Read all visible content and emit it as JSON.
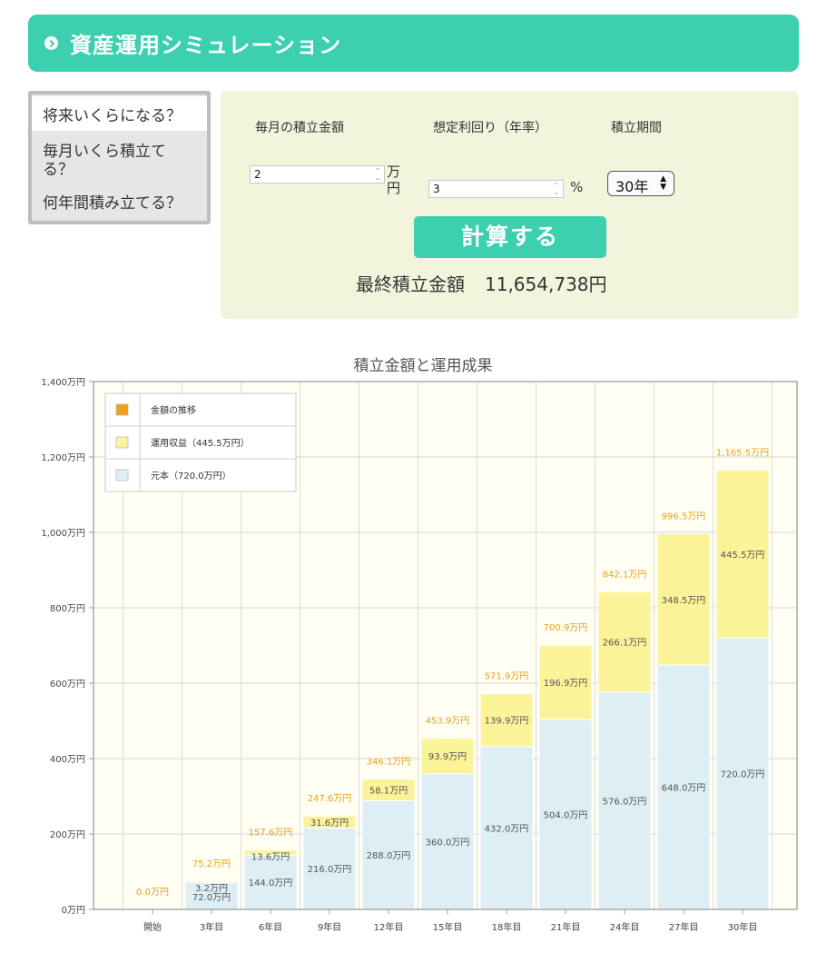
{
  "header": {
    "title": "資産運用シミュレーション"
  },
  "tabs": [
    {
      "label": "将来いくらになる？",
      "active": true
    },
    {
      "label": "毎月いくら積立てる？",
      "active": false
    },
    {
      "label": "何年間積み立てる？",
      "active": false
    }
  ],
  "form": {
    "monthly_label": "毎月の積立金額",
    "rate_label": "想定利回り（年率）",
    "period_label": "積立期間",
    "monthly_value": "2",
    "monthly_unit": "万円",
    "rate_value": "3",
    "rate_unit": "%",
    "period_value": "30年",
    "calc_label": "計算する"
  },
  "result": {
    "label": "最終積立金額",
    "value": "11,654,738円"
  },
  "colors": {
    "accent": "#3ccfb0",
    "principal": "#ddeef4",
    "gain": "#fbf398",
    "total_label": "#e8a020",
    "legend_total": "#f0a01c"
  },
  "chart_data": {
    "type": "bar",
    "title": "積立金額と運用成果",
    "categories": [
      "開始",
      "3年目",
      "6年目",
      "9年目",
      "12年目",
      "15年目",
      "18年目",
      "21年目",
      "24年目",
      "27年目",
      "30年目"
    ],
    "series": [
      {
        "name": "元本（720.0万円）",
        "values": [
          0,
          72.0,
          144.0,
          216.0,
          288.0,
          360.0,
          432.0,
          504.0,
          576.0,
          648.0,
          720.0
        ]
      },
      {
        "name": "運用収益（445.5万円）",
        "values": [
          0,
          3.2,
          13.6,
          31.6,
          58.1,
          93.9,
          139.9,
          196.9,
          266.1,
          348.5,
          445.5
        ]
      },
      {
        "name": "金額の推移",
        "values": [
          0.0,
          75.2,
          157.6,
          247.6,
          346.1,
          453.9,
          571.9,
          700.9,
          842.1,
          996.5,
          1165.5
        ]
      }
    ],
    "principal_labels": [
      "",
      "72.0万円",
      "144.0万円",
      "216.0万円",
      "288.0万円",
      "360.0万円",
      "432.0万円",
      "504.0万円",
      "576.0万円",
      "648.0万円",
      "720.0万円"
    ],
    "gain_labels": [
      "",
      "3.2万円",
      "13.6万円",
      "31.6万円",
      "58.1万円",
      "93.9万円",
      "139.9万円",
      "196.9万円",
      "266.1万円",
      "348.5万円",
      "445.5万円"
    ],
    "total_labels": [
      "0.0万円",
      "75.2万円",
      "157.6万円",
      "247.6万円",
      "346.1万円",
      "453.9万円",
      "571.9万円",
      "700.9万円",
      "842.1万円",
      "996.5万円",
      "1,165.5万円"
    ],
    "yticks": [
      "0万円",
      "200万円",
      "400万円",
      "600万円",
      "800万円",
      "1,000万円",
      "1,200万円",
      "1,400万円"
    ],
    "ylim": [
      0,
      1400
    ],
    "grid": true,
    "legend_position": "top-left"
  }
}
